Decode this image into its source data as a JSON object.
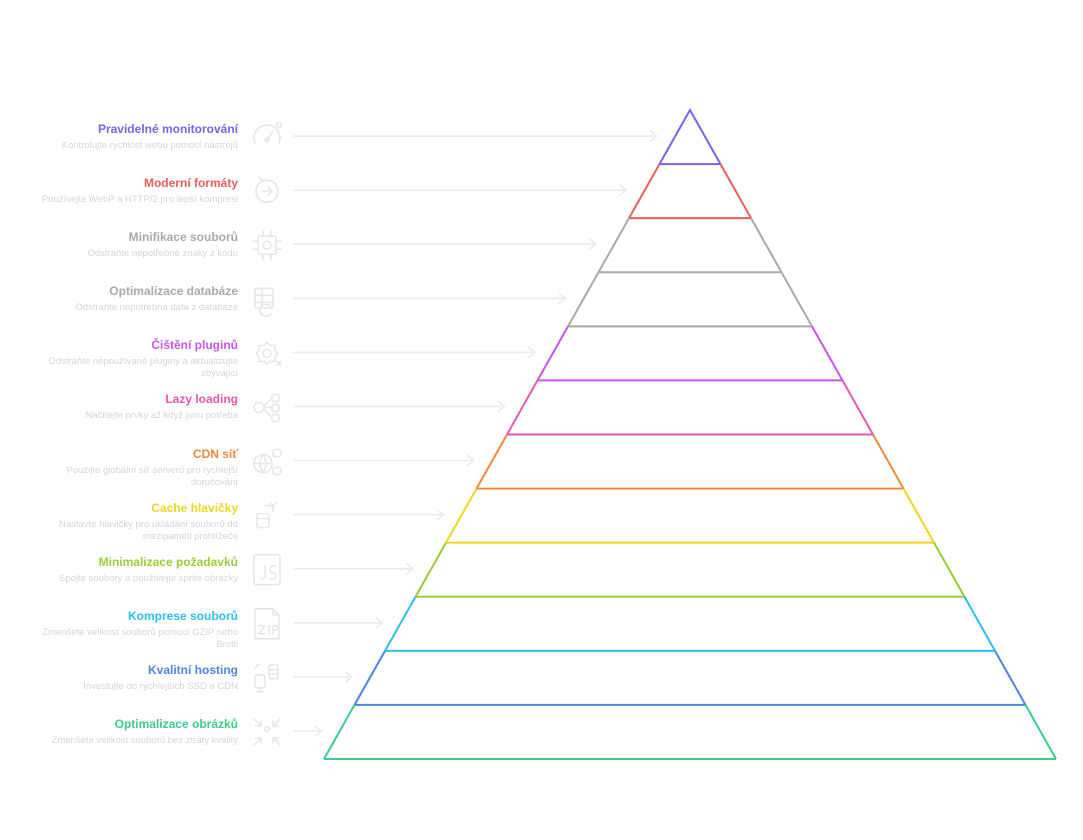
{
  "levels": [
    {
      "title": "Pravidelné monitorování",
      "description": "Kontrolujte rychlost webu pomocí nástrojů",
      "color": "#7B61E8",
      "icon": "speedometer-icon"
    },
    {
      "title": "Moderní formáty",
      "description": "Používejte WebP a HTTP/2 pro lepší kompresi",
      "color": "#E8605C",
      "icon": "arrow-circle-icon"
    },
    {
      "title": "Minifikace souborů",
      "description": "Odstraňte nepotřebné znaky z kódu",
      "color": "#A9A9A9",
      "icon": "compress-frame-icon"
    },
    {
      "title": "Optimalizace databáze",
      "description": "Odstraňte nepotřebná data z databáze",
      "color": "#A9A9A9",
      "icon": "database-refresh-icon"
    },
    {
      "title": "Čištění pluginů",
      "description": "Odstraňte nepoužívané pluginy a aktualizujte zbývající",
      "color": "#C557E8",
      "icon": "gear-icon"
    },
    {
      "title": "Lazy loading",
      "description": "Načítejte prvky až když jsou potřeba",
      "color": "#E45AAE",
      "icon": "network-nodes-icon"
    },
    {
      "title": "CDN síť",
      "description": "Použijte globální síť serverů pro rychlejší doručování",
      "color": "#EC8A3D",
      "icon": "globe-servers-icon"
    },
    {
      "title": "Cache hlavičky",
      "description": "Nastavte hlavičky pro ukládání souborů do mezipaměti prohlížeče",
      "color": "#EDD621",
      "icon": "cache-storage-icon"
    },
    {
      "title": "Minimalizace požadavků",
      "description": "Spojte soubory a používejte sprite obrázky",
      "color": "#9BCB3A",
      "icon": "js-file-icon"
    },
    {
      "title": "Komprese souborů",
      "description": "Zmenšete velikost souborů pomocí GZIP nebo Brotli",
      "color": "#2DBFE8",
      "icon": "zip-file-icon"
    },
    {
      "title": "Kvalitní hosting",
      "description": "Investujte do rychlejších SSD a CDN",
      "color": "#4C86DD",
      "icon": "server-icon"
    },
    {
      "title": "Optimalizace obrázků",
      "description": "Zmenšete velikost souborů bez ztráty kvality",
      "color": "#3FCB8A",
      "icon": "image-compress-icon"
    }
  ],
  "colors": {
    "icon": "#E6E6E6",
    "arrow": "#EAEAEA",
    "description": "#D4D4D4"
  }
}
